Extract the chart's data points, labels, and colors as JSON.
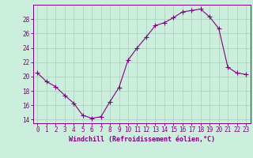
{
  "x": [
    0,
    1,
    2,
    3,
    4,
    5,
    6,
    7,
    8,
    9,
    10,
    11,
    12,
    13,
    14,
    15,
    16,
    17,
    18,
    19,
    20,
    21,
    22,
    23
  ],
  "y": [
    20.5,
    19.3,
    18.6,
    17.4,
    16.3,
    14.6,
    14.2,
    14.4,
    16.5,
    18.5,
    22.3,
    24.0,
    25.5,
    27.1,
    27.5,
    28.2,
    29.0,
    29.2,
    29.4,
    28.3,
    26.7,
    21.3,
    20.5,
    20.3
  ],
  "line_color": "#800080",
  "marker": "+",
  "marker_size": 4,
  "bg_color": "#cceedd",
  "grid_color": "#aaccbb",
  "xlabel": "Windchill (Refroidissement éolien,°C)",
  "ylim": [
    13.5,
    30.0
  ],
  "xlim": [
    -0.5,
    23.5
  ],
  "yticks": [
    14,
    16,
    18,
    20,
    22,
    24,
    26,
    28
  ],
  "xticks": [
    0,
    1,
    2,
    3,
    4,
    5,
    6,
    7,
    8,
    9,
    10,
    11,
    12,
    13,
    14,
    15,
    16,
    17,
    18,
    19,
    20,
    21,
    22,
    23
  ],
  "label_fontsize": 6,
  "tick_fontsize": 5.5
}
